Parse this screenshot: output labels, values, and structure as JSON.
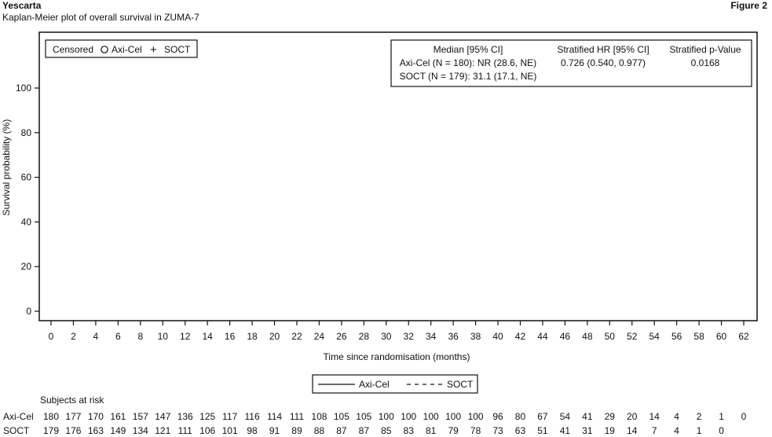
{
  "header": {
    "title": "Yescarta",
    "figure_label": "Figure 2",
    "subtitle": "Kaplan-Meier plot of overall survival in ZUMA-7"
  },
  "chart_data": {
    "type": "line",
    "ylabel": "Survival probability (%)",
    "xlabel": "Time since randomisation (months)",
    "yticks": [
      0,
      20,
      40,
      60,
      80,
      100
    ],
    "xticks": [
      0,
      2,
      4,
      6,
      8,
      10,
      12,
      14,
      16,
      18,
      20,
      22,
      24,
      26,
      28,
      30,
      32,
      34,
      36,
      38,
      40,
      42,
      44,
      46,
      48,
      50,
      52,
      54,
      56,
      58,
      60,
      62
    ],
    "xlim": [
      0,
      62
    ],
    "ylim": [
      0,
      100
    ],
    "censor_legend": {
      "title": "Censored",
      "items": [
        {
          "symbol": "O",
          "label": "Axi-Cel"
        },
        {
          "symbol": "+",
          "label": "SOCT"
        }
      ]
    },
    "stats_table": {
      "headers": [
        "Median [95% CI]",
        "Stratified HR [95% CI]",
        "Stratified p-Value"
      ],
      "rows": [
        [
          "Axi-Cel (N = 180): NR (28.6, NE)",
          "0.726 (0.540, 0.977)",
          "0.0168"
        ],
        [
          "SOCT (N = 179): 31.1 (17.1, NE)",
          "",
          ""
        ]
      ]
    },
    "line_legend": [
      {
        "label": "Axi-Cel",
        "style": "solid"
      },
      {
        "label": "SOCT",
        "style": "dashed"
      }
    ],
    "series": [
      {
        "name": "Axi-Cel",
        "x": [],
        "y": []
      },
      {
        "name": "SOCT",
        "x": [],
        "y": []
      }
    ],
    "risk_table": {
      "title": "Subjects at risk",
      "rows": [
        {
          "label": "Axi-Cel",
          "values": [
            180,
            177,
            170,
            161,
            157,
            147,
            136,
            125,
            117,
            116,
            114,
            111,
            108,
            105,
            105,
            100,
            100,
            100,
            100,
            100,
            96,
            80,
            67,
            54,
            41,
            29,
            20,
            14,
            4,
            2,
            1,
            0
          ]
        },
        {
          "label": "SOCT",
          "values": [
            179,
            176,
            163,
            149,
            134,
            121,
            111,
            106,
            101,
            98,
            91,
            89,
            88,
            87,
            87,
            85,
            83,
            81,
            79,
            78,
            73,
            63,
            51,
            41,
            31,
            19,
            14,
            7,
            4,
            1,
            0
          ]
        }
      ]
    }
  }
}
